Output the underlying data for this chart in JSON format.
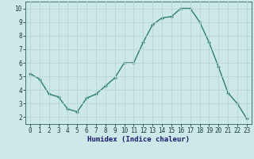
{
  "x": [
    0,
    1,
    2,
    3,
    4,
    5,
    6,
    7,
    8,
    9,
    10,
    11,
    12,
    13,
    14,
    15,
    16,
    17,
    18,
    19,
    20,
    21,
    22,
    23
  ],
  "y": [
    5.2,
    4.8,
    3.7,
    3.5,
    2.6,
    2.4,
    3.4,
    3.7,
    4.3,
    4.9,
    6.0,
    6.0,
    7.5,
    8.8,
    9.3,
    9.4,
    10.0,
    10.0,
    9.0,
    7.5,
    5.7,
    3.8,
    3.0,
    1.9
  ],
  "line_color": "#2e7d6e",
  "marker": "+",
  "marker_size": 3,
  "marker_lw": 1.0,
  "xlabel": "Humidex (Indice chaleur)",
  "xlim": [
    -0.5,
    23.5
  ],
  "ylim": [
    1.5,
    10.5
  ],
  "yticks": [
    2,
    3,
    4,
    5,
    6,
    7,
    8,
    9,
    10
  ],
  "xticks": [
    0,
    1,
    2,
    3,
    4,
    5,
    6,
    7,
    8,
    9,
    10,
    11,
    12,
    13,
    14,
    15,
    16,
    17,
    18,
    19,
    20,
    21,
    22,
    23
  ],
  "bg_color": "#cce8e8",
  "grid_color": "#b8d4d4",
  "axis_color": "#2e5c5c",
  "tick_label_color": "#1a3a3a",
  "xlabel_color": "#1a1a6e",
  "line_width": 1.0,
  "tick_fontsize": 5.5,
  "xlabel_fontsize": 6.5
}
